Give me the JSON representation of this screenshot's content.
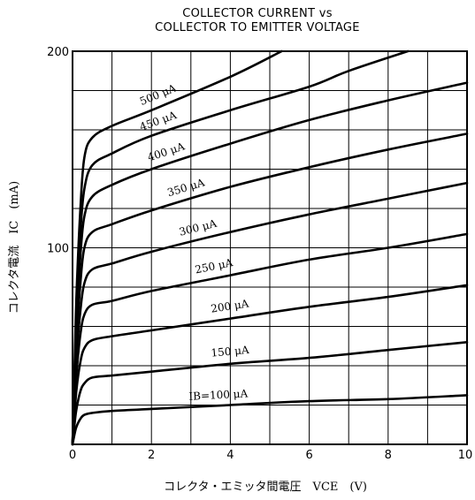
{
  "chart_data": {
    "type": "line",
    "title": "COLLECTOR CURRENT vs\nCOLLECTOR TO EMITTER VOLTAGE",
    "title_lines": [
      "COLLECTOR CURRENT vs",
      "COLLECTOR TO EMITTER VOLTAGE"
    ],
    "xlabel": "コレクタ・エミッタ間電圧　VCE　(V)",
    "ylabel": "コレクタ電流　IC　(mA)",
    "xlim": [
      0,
      10
    ],
    "ylim": [
      0,
      200
    ],
    "x_ticks": [
      0,
      2,
      4,
      6,
      8,
      10
    ],
    "x_tick_labels": [
      "0",
      "2",
      "4",
      "6",
      "8",
      "10"
    ],
    "y_ticks": [
      0,
      100,
      200
    ],
    "y_tick_labels": [
      "",
      "100",
      "200"
    ],
    "grid": true,
    "legend": "none",
    "series": [
      {
        "name": "IB=100 μA",
        "label": "IB=100 μA",
        "x": [
          0,
          0.05,
          0.1,
          0.2,
          0.3,
          0.5,
          1,
          2,
          4,
          6,
          8,
          10
        ],
        "y": [
          0,
          5,
          9,
          13,
          15,
          16,
          17,
          18,
          20,
          22,
          23,
          25
        ]
      },
      {
        "name": "150 μA",
        "label": "150 μA",
        "x": [
          0,
          0.05,
          0.1,
          0.2,
          0.3,
          0.5,
          1,
          2,
          4,
          6,
          8,
          10
        ],
        "y": [
          0,
          10,
          18,
          27,
          31,
          34,
          35,
          37,
          41,
          44,
          48,
          52
        ]
      },
      {
        "name": "200 μA",
        "label": "200 μA",
        "x": [
          0,
          0.05,
          0.1,
          0.2,
          0.3,
          0.5,
          1,
          2,
          4,
          6,
          8,
          10
        ],
        "y": [
          0,
          14,
          28,
          42,
          49,
          53,
          55,
          58,
          64,
          70,
          75,
          81
        ]
      },
      {
        "name": "250 μA",
        "label": "250 μA",
        "x": [
          0,
          0.05,
          0.1,
          0.2,
          0.3,
          0.5,
          1,
          2,
          4,
          6,
          8,
          10
        ],
        "y": [
          0,
          18,
          36,
          56,
          66,
          71,
          73,
          78,
          86,
          94,
          100,
          107
        ]
      },
      {
        "name": "300 μA",
        "label": "300 μA",
        "x": [
          0,
          0.05,
          0.1,
          0.2,
          0.3,
          0.5,
          1,
          2,
          4,
          6,
          8,
          10
        ],
        "y": [
          0,
          22,
          44,
          68,
          82,
          89,
          92,
          98,
          108,
          117,
          125,
          133
        ]
      },
      {
        "name": "350 μA",
        "label": "350 μA",
        "x": [
          0,
          0.05,
          0.1,
          0.2,
          0.3,
          0.5,
          1,
          2,
          4,
          6,
          8,
          10
        ],
        "y": [
          0,
          26,
          52,
          82,
          100,
          108,
          112,
          119,
          131,
          141,
          150,
          158
        ]
      },
      {
        "name": "400 μA",
        "label": "400 μA",
        "x": [
          0,
          0.05,
          0.1,
          0.2,
          0.3,
          0.5,
          1,
          2,
          4,
          6,
          8,
          10
        ],
        "y": [
          0,
          30,
          60,
          96,
          116,
          126,
          132,
          140,
          153,
          165,
          175,
          184
        ]
      },
      {
        "name": "450 μA",
        "label": "450 μA",
        "x": [
          0,
          0.05,
          0.1,
          0.2,
          0.3,
          0.5,
          1,
          2,
          4,
          6,
          7,
          8.5
        ],
        "y": [
          0,
          34,
          68,
          108,
          130,
          142,
          148,
          157,
          170,
          182,
          190,
          200
        ]
      },
      {
        "name": "500 μA",
        "label": "500 μA",
        "x": [
          0,
          0.05,
          0.1,
          0.2,
          0.3,
          0.5,
          1,
          2,
          4,
          5.3
        ],
        "y": [
          0,
          38,
          76,
          120,
          146,
          156,
          162,
          170,
          187,
          200
        ]
      }
    ]
  }
}
